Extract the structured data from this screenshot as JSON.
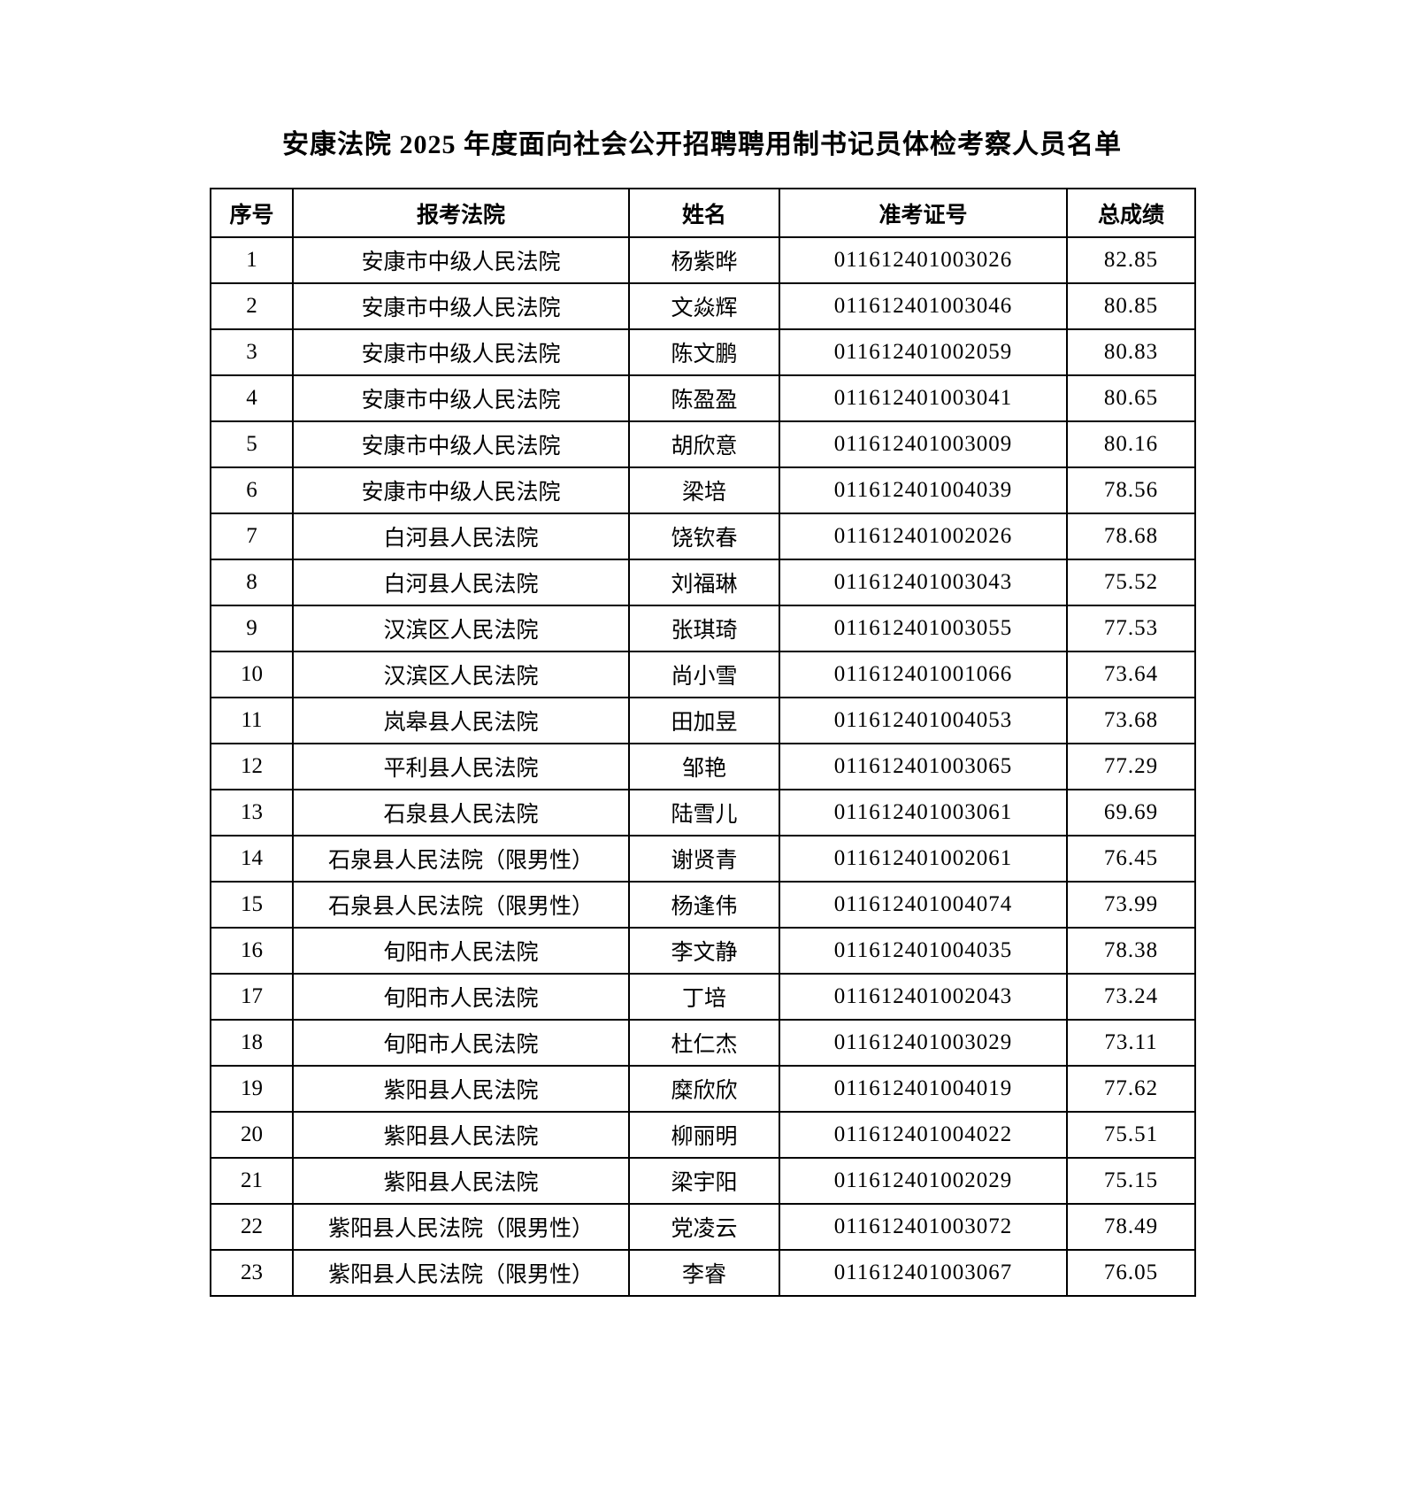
{
  "page": {
    "title": "安康法院 2025 年度面向社会公开招聘聘用制书记员体检考察人员名单"
  },
  "table": {
    "headers": [
      "序号",
      "报考法院",
      "姓名",
      "准考证号",
      "总成绩"
    ],
    "rows": [
      {
        "no": "1",
        "court": "安康市中级人民法院",
        "name": "杨紫晔",
        "ticket": "011612401003026",
        "score": "82.85"
      },
      {
        "no": "2",
        "court": "安康市中级人民法院",
        "name": "文焱辉",
        "ticket": "011612401003046",
        "score": "80.85"
      },
      {
        "no": "3",
        "court": "安康市中级人民法院",
        "name": "陈文鹏",
        "ticket": "011612401002059",
        "score": "80.83"
      },
      {
        "no": "4",
        "court": "安康市中级人民法院",
        "name": "陈盈盈",
        "ticket": "011612401003041",
        "score": "80.65"
      },
      {
        "no": "5",
        "court": "安康市中级人民法院",
        "name": "胡欣意",
        "ticket": "011612401003009",
        "score": "80.16"
      },
      {
        "no": "6",
        "court": "安康市中级人民法院",
        "name": "梁培",
        "ticket": "011612401004039",
        "score": "78.56"
      },
      {
        "no": "7",
        "court": "白河县人民法院",
        "name": "饶钦春",
        "ticket": "011612401002026",
        "score": "78.68"
      },
      {
        "no": "8",
        "court": "白河县人民法院",
        "name": "刘福琳",
        "ticket": "011612401003043",
        "score": "75.52"
      },
      {
        "no": "9",
        "court": "汉滨区人民法院",
        "name": "张琪琦",
        "ticket": "011612401003055",
        "score": "77.53"
      },
      {
        "no": "10",
        "court": "汉滨区人民法院",
        "name": "尚小雪",
        "ticket": "011612401001066",
        "score": "73.64"
      },
      {
        "no": "11",
        "court": "岚皋县人民法院",
        "name": "田加昱",
        "ticket": "011612401004053",
        "score": "73.68"
      },
      {
        "no": "12",
        "court": "平利县人民法院",
        "name": "邹艳",
        "ticket": "011612401003065",
        "score": "77.29"
      },
      {
        "no": "13",
        "court": "石泉县人民法院",
        "name": "陆雪儿",
        "ticket": "011612401003061",
        "score": "69.69"
      },
      {
        "no": "14",
        "court": "石泉县人民法院（限男性）",
        "name": "谢贤青",
        "ticket": "011612401002061",
        "score": "76.45"
      },
      {
        "no": "15",
        "court": "石泉县人民法院（限男性）",
        "name": "杨逢伟",
        "ticket": "011612401004074",
        "score": "73.99"
      },
      {
        "no": "16",
        "court": "旬阳市人民法院",
        "name": "李文静",
        "ticket": "011612401004035",
        "score": "78.38"
      },
      {
        "no": "17",
        "court": "旬阳市人民法院",
        "name": "丁培",
        "ticket": "011612401002043",
        "score": "73.24"
      },
      {
        "no": "18",
        "court": "旬阳市人民法院",
        "name": "杜仁杰",
        "ticket": "011612401003029",
        "score": "73.11"
      },
      {
        "no": "19",
        "court": "紫阳县人民法院",
        "name": "糜欣欣",
        "ticket": "011612401004019",
        "score": "77.62"
      },
      {
        "no": "20",
        "court": "紫阳县人民法院",
        "name": "柳丽明",
        "ticket": "011612401004022",
        "score": "75.51"
      },
      {
        "no": "21",
        "court": "紫阳县人民法院",
        "name": "梁宇阳",
        "ticket": "011612401002029",
        "score": "75.15"
      },
      {
        "no": "22",
        "court": "紫阳县人民法院（限男性）",
        "name": "党凌云",
        "ticket": "011612401003072",
        "score": "78.49"
      },
      {
        "no": "23",
        "court": "紫阳县人民法院（限男性）",
        "name": "李睿",
        "ticket": "011612401003067",
        "score": "76.05"
      }
    ]
  }
}
